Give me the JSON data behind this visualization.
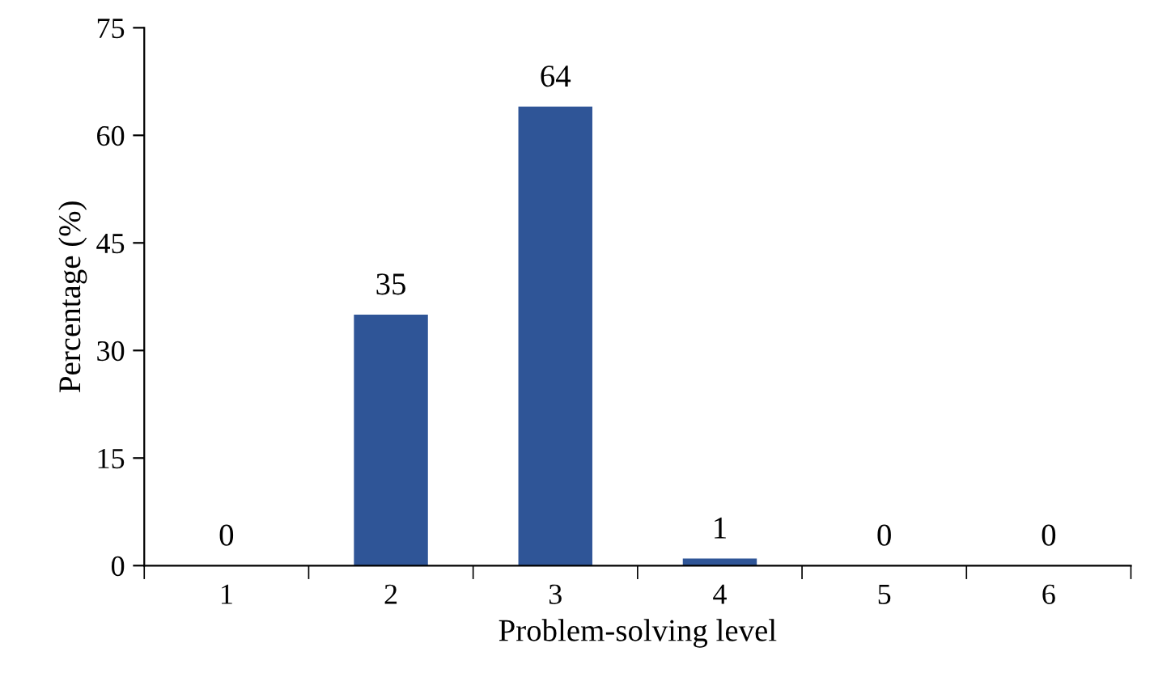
{
  "chart_data": {
    "type": "bar",
    "xlabel": "Problem-solving level",
    "ylabel": "Percentage (%)",
    "categories": [
      "1",
      "2",
      "3",
      "4",
      "5",
      "6"
    ],
    "values": [
      0,
      35,
      64,
      1,
      0,
      0
    ],
    "color": "#2f5597",
    "ylim": [
      0,
      75
    ],
    "yticks": [
      0,
      15,
      30,
      45,
      60,
      75
    ],
    "data_labels": true,
    "grid": false,
    "legend": false
  }
}
